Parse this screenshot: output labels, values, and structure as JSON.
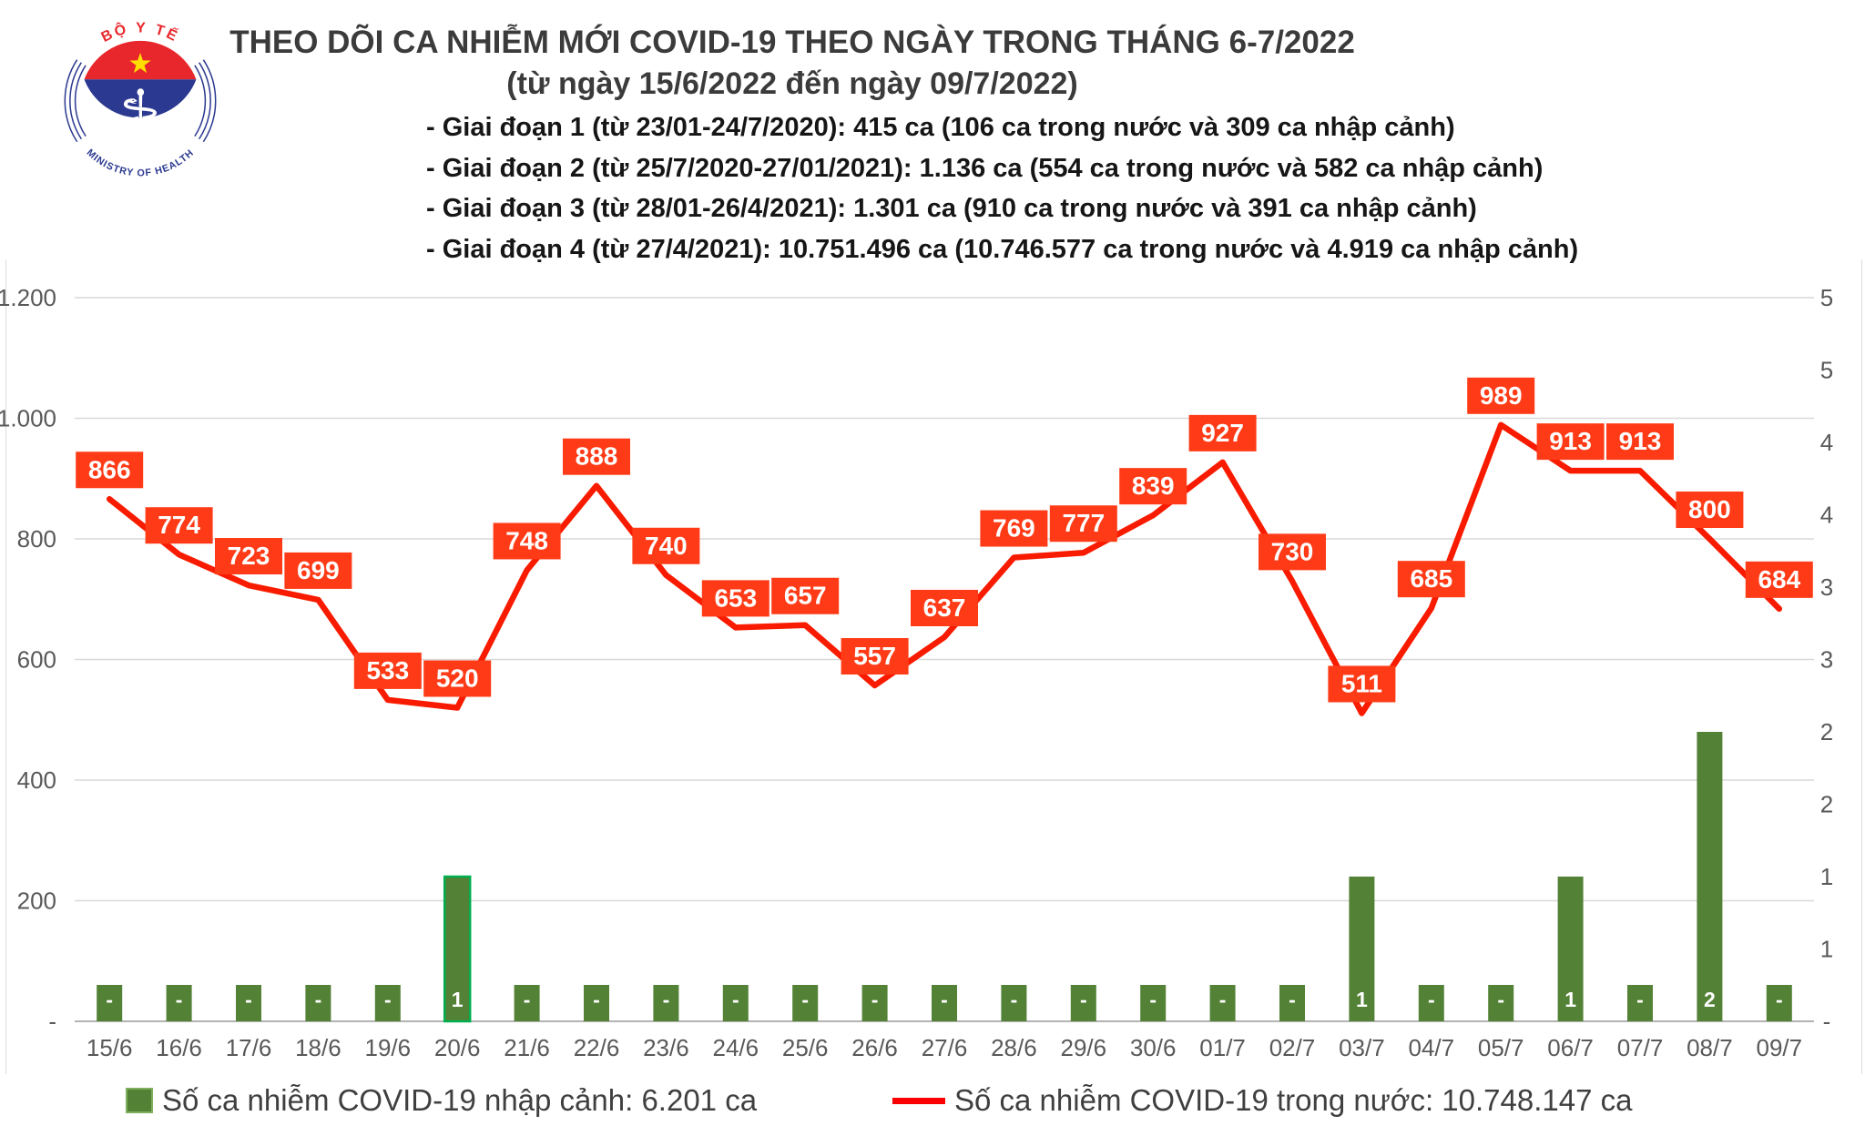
{
  "logo": {
    "top_text": "BỘ Y TẾ",
    "bottom_text": "MINISTRY OF HEALTH"
  },
  "header": {
    "title": "THEO DÕI CA NHIỄM MỚI COVID-19 THEO NGÀY TRONG THÁNG 6-7/2022",
    "subtitle": "(từ ngày 15/6/2022 đến ngày 09/7/2022)"
  },
  "notes": [
    "- Giai đoạn 1 (từ 23/01-24/7/2020): 415 ca (106 ca trong nước và 309 ca nhập cảnh)",
    "- Giai đoạn 2 (từ 25/7/2020-27/01/2021): 1.136 ca (554 ca trong nước và 582 ca nhập cảnh)",
    "- Giai đoạn 3 (từ 28/01-26/4/2021): 1.301 ca (910 ca trong nước và 391 ca nhập cảnh)",
    "- Giai đoạn 4 (từ 27/4/2021): 10.751.496 ca (10.746.577 ca trong nước và 4.919 ca nhập cảnh)"
  ],
  "chart_data": {
    "type": "line+bar combo",
    "title": "THEO DÕI CA NHIỄM MỚI COVID-19 THEO NGÀY TRONG THÁNG 6-7/2022",
    "categories": [
      "15/6",
      "16/6",
      "17/6",
      "18/6",
      "19/6",
      "20/6",
      "21/6",
      "22/6",
      "23/6",
      "24/6",
      "25/6",
      "26/6",
      "27/6",
      "28/6",
      "29/6",
      "30/6",
      "01/7",
      "02/7",
      "03/7",
      "04/7",
      "05/7",
      "06/7",
      "07/7",
      "08/7",
      "09/7"
    ],
    "series": [
      {
        "name": "Số ca nhiễm COVID-19 trong nước",
        "type": "line",
        "axis": "left",
        "color": "#f91b00",
        "label_box_color": "#ff3b17",
        "values": [
          866,
          774,
          723,
          699,
          533,
          520,
          748,
          888,
          740,
          653,
          657,
          557,
          637,
          769,
          777,
          839,
          927,
          730,
          511,
          685,
          989,
          913,
          913,
          800,
          684
        ]
      },
      {
        "name": "Số ca nhiễm COVID-19 nhập cảnh",
        "type": "bar",
        "axis": "right",
        "color": "#538135",
        "values": [
          0,
          0,
          0,
          0,
          0,
          1,
          0,
          0,
          0,
          0,
          0,
          0,
          0,
          0,
          0,
          0,
          0,
          0,
          1,
          0,
          0,
          1,
          0,
          2,
          0
        ],
        "labels": [
          "-",
          "-",
          "-",
          "-",
          "-",
          "1",
          "-",
          "-",
          "-",
          "-",
          "-",
          "-",
          "-",
          "-",
          "-",
          "-",
          "-",
          "-",
          "1",
          "-",
          "-",
          "1",
          "-",
          "2",
          "-"
        ],
        "highlight_index": 5
      }
    ],
    "left_axis": {
      "min": 0,
      "max": 1200,
      "tick_labels_top_to_bottom": [
        "1.200",
        "1.000",
        "800",
        "600",
        "400",
        "200",
        "-"
      ]
    },
    "right_axis": {
      "min": 0,
      "max": 5,
      "tick_labels_top_to_bottom": [
        "5",
        "5",
        "4",
        "4",
        "3",
        "3",
        "2",
        "2",
        "1",
        "1",
        "-"
      ]
    },
    "grid": true,
    "legend_position": "bottom"
  },
  "legend": {
    "items": [
      {
        "swatch": "bar-square",
        "color": "#538135",
        "label": "Số ca nhiễm COVID-19 nhập cảnh: 6.201 ca"
      },
      {
        "swatch": "line",
        "color": "#fa0000",
        "label": "Số ca nhiễm COVID-19 trong nước: 10.748.147 ca"
      }
    ]
  }
}
